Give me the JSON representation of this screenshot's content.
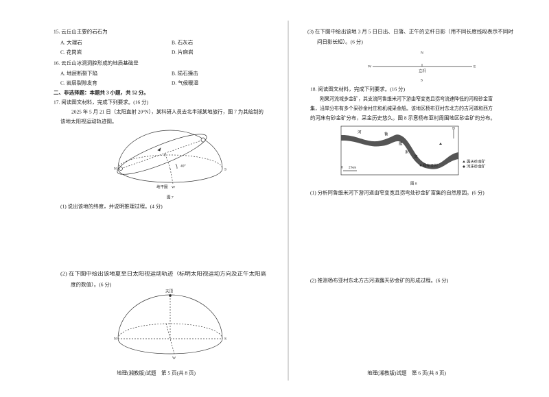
{
  "left": {
    "q15": {
      "stem": "15. 云丘山主要的岩石为",
      "options": [
        "A. 大理岩",
        "B. 石灰岩",
        "C. 花岗岩",
        "D. 片麻岩"
      ]
    },
    "q16": {
      "stem": "16. 云丘山冰洞洞腔形成的地质基础是",
      "options": [
        "A. 地层断裂下陷",
        "B. 陨石撞击",
        "C. 岩层裂隙发育",
        "D. 气候暖湿"
      ]
    },
    "section": "二、非选择题：本题共 3 小题，共 52 分。",
    "q17": {
      "stem": "17. 阅读图文材料，完成下列要求。(16 分)",
      "material": [
        "2025 年 5 月 21 日（太阳直射 20°N），某科研人员去北半球某地旅行，图 7 为其绘制的",
        "该地太阳视运动轨迹图。"
      ],
      "figure7": {
        "labels": [
          "N",
          "S",
          "E",
          "W",
          "40°",
          "地平圈"
        ],
        "caption": "图 7"
      },
      "sub1": "(1) 说出该地的纬度，并说明推理过程。(4 分)",
      "sub2": [
        "(2) 在下图中绘出该地夏至日太阳视运动轨迹（标明太阳视运动方向及正午太阳高",
        "度的数值）。(6 分)"
      ],
      "figure": {
        "labels": [
          "天顶",
          "N",
          "S",
          "W"
        ]
      }
    },
    "footer": "地理(湘教版)试题　第 5 页(共 8 页)"
  },
  "right": {
    "sub3": [
      "(3) 在下图中绘出该地 3 月 5 日日出、日落、正午的立杆日影（用不同长度线段表示不同时",
      "间日影长短）。(6 分)"
    ],
    "figure": {
      "labels": [
        "N",
        "W",
        "E",
        "S",
        "立杆"
      ]
    },
    "q18": {
      "stem": "18. 阅读图文材料，完成下列要求。(16 分)",
      "material": [
        "刚果河流域多金矿，其支流阿鲁维米河下游由窄变宽且拐弯流速降低的河段砂金富",
        "集，沿岸分布有多个采砂金村庄和机械采金船。该地区杨布亚村东北方的古河道和西方",
        "的河床有砂金矿分布，采金历史悠久。图 8 示意杨布亚村周围地区砂金矿的分布。"
      ],
      "figure8": {
        "river": [
          "河",
          "鲁",
          "维",
          "米",
          "河"
        ],
        "village": "杨布亚村",
        "scale": [
          "0",
          "2 km"
        ],
        "north": "N",
        "legend": [
          "露天砂金矿",
          "河床砂金矿"
        ],
        "caption": "图 8"
      },
      "sub1": "(1) 分析阿鲁维米河下游河道由窄变宽且拐弯处砂金矿富集的自然原因。(6 分)",
      "sub2": "(2) 推测杨布亚村东北方古河道露天砂金矿的形成过程。(6 分)"
    },
    "footer": "地理(湘教版)试题　第 6 页(共 8 页)"
  }
}
